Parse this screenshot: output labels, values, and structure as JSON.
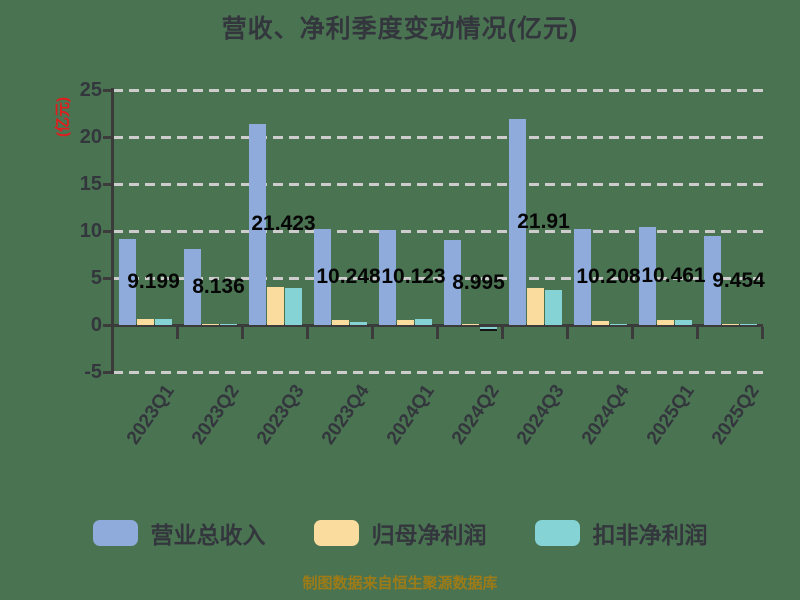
{
  "title": "营收、净利季度变动情况(亿元)",
  "footer": "制图数据来自恒生聚源数据库",
  "colors": {
    "background": "#4A7351",
    "axis": "#3B3B3B",
    "grid": "#CDCDCD",
    "title_text": "#33373D",
    "y_title_text": "#E21C1C",
    "bar_value_label": "#060606",
    "footer_text": "#9D7B17"
  },
  "chart_data": {
    "type": "bar",
    "title": "营收、净利季度变动情况(亿元)",
    "ylabel": "(亿元)",
    "xlabel": "",
    "ylim": [
      -5,
      25
    ],
    "y_ticks": [
      25,
      20,
      15,
      10,
      5,
      0,
      -5
    ],
    "grid": "horizontal dashed",
    "legend_position": "bottom",
    "categories": [
      "2023Q1",
      "2023Q2",
      "2023Q3",
      "2023Q4",
      "2024Q1",
      "2024Q2",
      "2024Q3",
      "2024Q4",
      "2025Q1",
      "2025Q2"
    ],
    "series": [
      {
        "name": "营业总收入",
        "color": "#8FABDC",
        "values": [
          9.199,
          8.136,
          21.423,
          10.248,
          10.123,
          8.995,
          21.91,
          10.208,
          10.461,
          9.454
        ],
        "labels": [
          "9.199",
          "8.136",
          "21.423",
          "10.248",
          "10.123",
          "8.995",
          "21.91",
          "10.208",
          "10.461",
          "9.454"
        ]
      },
      {
        "name": "归母净利润",
        "color": "#FBDC9F",
        "values": [
          0.65,
          0.12,
          4.05,
          0.55,
          0.55,
          0.08,
          3.9,
          0.45,
          0.55,
          0.1
        ],
        "labels": []
      },
      {
        "name": "扣非净利润",
        "color": "#86D3D5",
        "values": [
          0.6,
          0.12,
          3.9,
          0.35,
          0.65,
          -0.18,
          3.7,
          0.15,
          0.5,
          0.08
        ],
        "labels": []
      }
    ],
    "source_note": "制图数据来自恒生聚源数据库"
  }
}
